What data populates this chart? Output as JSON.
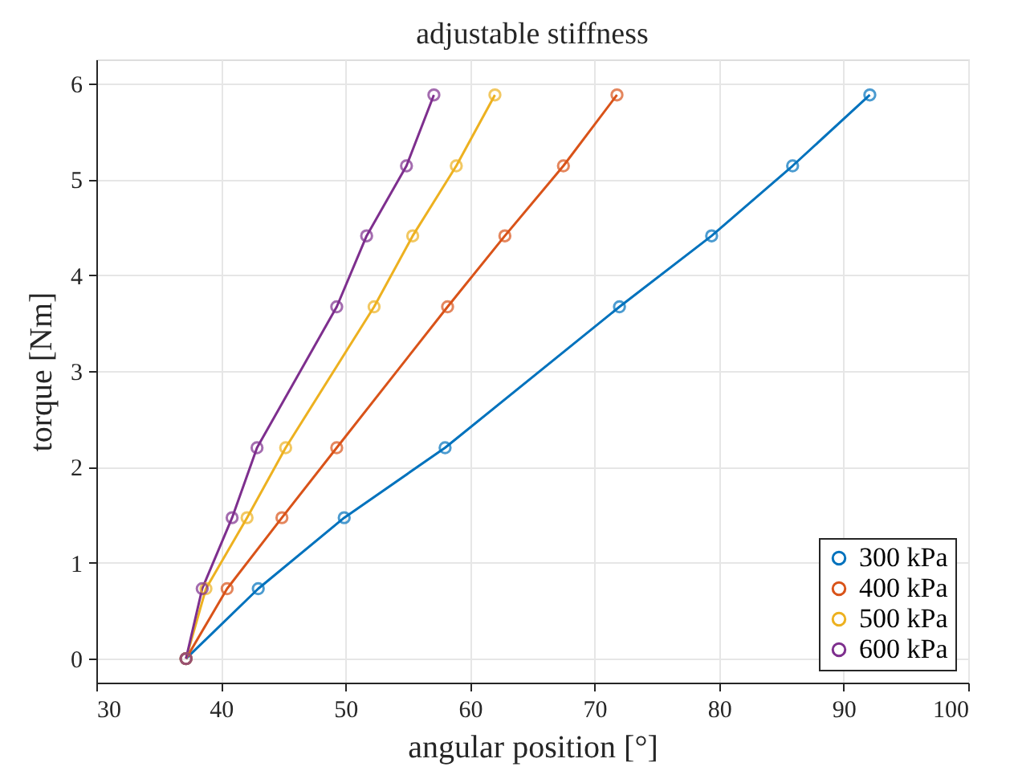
{
  "chart_data": {
    "type": "line",
    "title": "adjustable stiffness",
    "xlabel": "angular position [°]",
    "ylabel": "torque [Nm]",
    "xlim": [
      30,
      100
    ],
    "xticks": [
      30,
      40,
      50,
      60,
      70,
      80,
      90,
      100
    ],
    "ylim": [
      -0.25,
      6.25
    ],
    "yticks": [
      0,
      1,
      2,
      3,
      4,
      5,
      6
    ],
    "grid": true,
    "legend": "bottom right",
    "marker": "circle",
    "line_style": "solid",
    "series": [
      {
        "name": "300 kPa",
        "color": "#0072bd",
        "x": [
          37.2,
          43.0,
          49.9,
          58.0,
          72.0,
          79.4,
          85.9,
          92.1
        ],
        "values": [
          0,
          0.73,
          1.47,
          2.2,
          3.67,
          4.41,
          5.14,
          5.88
        ]
      },
      {
        "name": "400 kPa",
        "color": "#d95319",
        "x": [
          37.2,
          40.5,
          44.9,
          49.3,
          58.2,
          62.8,
          67.5,
          71.8
        ],
        "values": [
          0,
          0.73,
          1.47,
          2.2,
          3.67,
          4.41,
          5.14,
          5.88
        ]
      },
      {
        "name": "500 kPa",
        "color": "#edb120",
        "x": [
          37.2,
          38.8,
          42.1,
          45.2,
          52.3,
          55.4,
          58.9,
          62.0
        ],
        "values": [
          0,
          0.73,
          1.47,
          2.2,
          3.67,
          4.41,
          5.14,
          5.88
        ]
      },
      {
        "name": "600 kPa",
        "color": "#7e2f8e",
        "x": [
          37.2,
          38.5,
          40.9,
          42.9,
          49.3,
          51.7,
          54.9,
          57.1
        ],
        "values": [
          0,
          0.73,
          1.47,
          2.2,
          3.67,
          4.41,
          5.14,
          5.88
        ]
      }
    ]
  }
}
